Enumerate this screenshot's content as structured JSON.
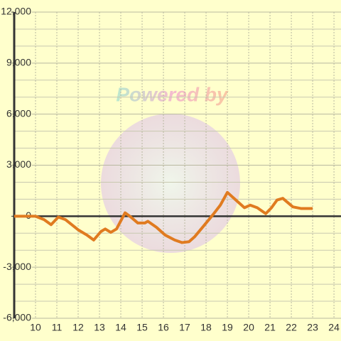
{
  "chart_data": {
    "type": "line",
    "watermark": "Powered by",
    "x": [
      9.0,
      10.0,
      10.4,
      10.73,
      11.07,
      11.4,
      12.0,
      12.4,
      12.73,
      13.07,
      13.27,
      13.53,
      13.8,
      14.2,
      14.47,
      14.8,
      15.13,
      15.27,
      15.67,
      16.07,
      16.53,
      16.87,
      17.2,
      17.47,
      17.87,
      18.33,
      18.67,
      19.0,
      19.4,
      19.8,
      20.07,
      20.4,
      20.8,
      21.07,
      21.33,
      21.6,
      22.07,
      22.47,
      23.0
    ],
    "series": [
      {
        "color": "#e07b20",
        "values": [
          0,
          0,
          -200,
          -500,
          -50,
          -200,
          -800,
          -1100,
          -1400,
          -900,
          -750,
          -950,
          -750,
          200,
          -50,
          -400,
          -400,
          -300,
          -650,
          -1100,
          -1400,
          -1550,
          -1500,
          -1200,
          -600,
          100,
          650,
          1400,
          950,
          500,
          650,
          500,
          150,
          500,
          950,
          1050,
          550,
          450,
          450
        ]
      }
    ],
    "xlim": [
      9.0,
      24.33
    ],
    "xticks": [
      10,
      11,
      12,
      13,
      14,
      15,
      16,
      17,
      18,
      19,
      20,
      21,
      22,
      23,
      24
    ],
    "ylim": [
      -6000,
      12000
    ],
    "yticks": [
      {
        "value": -6000,
        "label": "-6,000"
      },
      {
        "value": -3000,
        "label": "-3,000"
      },
      0,
      {
        "value": 3000,
        "label": "3,000"
      },
      {
        "value": 6000,
        "label": "6,000"
      },
      {
        "value": 9000,
        "label": "9,000"
      },
      {
        "value": 12000,
        "label": "12,000"
      }
    ],
    "y_minor_ticks": [
      -5000,
      -4000,
      -2000,
      -1000,
      1000,
      2000,
      4000,
      5000,
      7000,
      8000,
      10000,
      11000
    ],
    "grid": true
  }
}
